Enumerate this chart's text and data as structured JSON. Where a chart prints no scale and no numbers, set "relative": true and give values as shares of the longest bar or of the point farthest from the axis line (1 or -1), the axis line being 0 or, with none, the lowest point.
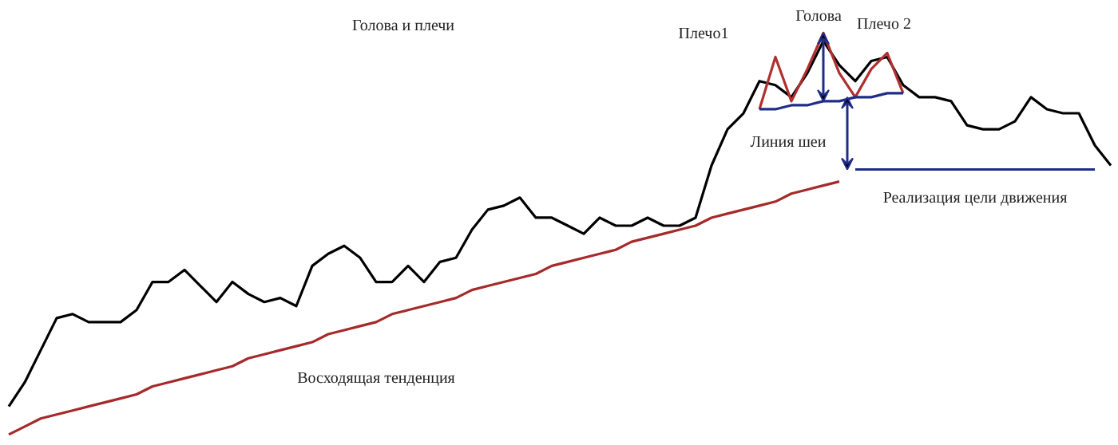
{
  "chart_data": {
    "type": "line",
    "relative": true,
    "title": "Голова и плечи",
    "annotations": [
      "Плечо1",
      "Голова",
      "Плечо 2",
      "Линия шеи",
      "Реализация цели движения",
      "Восходящая тенденция"
    ],
    "categories": [
      null,
      null,
      null,
      null,
      null,
      null,
      null,
      null,
      null,
      null,
      null,
      null,
      null,
      null,
      null,
      null,
      null,
      null,
      null,
      null,
      null,
      null,
      null,
      null,
      null,
      null,
      null,
      null,
      null,
      null,
      null,
      null,
      null,
      null,
      null,
      null,
      null,
      null,
      null,
      null,
      null,
      null,
      null,
      null,
      null,
      null,
      null,
      null,
      null,
      null,
      null,
      null,
      null,
      null,
      null,
      null,
      null,
      null,
      null,
      null,
      null,
      null,
      null,
      null,
      null,
      null,
      null,
      null,
      null,
      null
    ],
    "grid": false,
    "line_style": "solid",
    "series": [
      {
        "color": "#000000",
        "values": [
          0.07,
          0.13,
          0.21,
          0.29,
          0.3,
          0.28,
          0.28,
          0.28,
          0.31,
          0.38,
          0.38,
          0.41,
          0.37,
          0.33,
          0.38,
          0.35,
          0.33,
          0.34,
          0.32,
          0.42,
          0.45,
          0.47,
          0.44,
          0.38,
          0.38,
          0.42,
          0.38,
          0.43,
          0.44,
          0.51,
          0.56,
          0.57,
          0.59,
          0.54,
          0.54,
          0.52,
          0.5,
          0.54,
          0.52,
          0.52,
          0.54,
          0.52,
          0.52,
          0.54,
          0.67,
          0.76,
          0.8,
          0.88,
          0.87,
          0.84,
          0.9,
          0.98,
          0.92,
          0.88,
          0.93,
          0.94,
          0.87,
          0.84,
          0.84,
          0.83,
          0.77,
          0.76,
          0.76,
          0.78,
          0.84,
          0.81,
          0.8,
          0.8,
          0.72,
          0.67
        ]
      },
      {
        "color": "#a52a2a",
        "values": [
          0.0,
          0.02,
          0.04,
          0.05,
          0.06,
          0.07,
          0.08,
          0.09,
          0.1,
          0.12,
          0.13,
          0.14,
          0.15,
          0.16,
          0.17,
          0.19,
          0.2,
          0.21,
          0.22,
          0.23,
          0.25,
          0.26,
          0.27,
          0.28,
          0.3,
          0.31,
          0.32,
          0.33,
          0.34,
          0.36,
          0.37,
          0.38,
          0.39,
          0.4,
          0.42,
          0.43,
          0.44,
          0.45,
          0.46,
          0.48,
          0.49,
          0.5,
          0.51,
          0.52,
          0.54,
          0.55,
          0.56,
          0.57,
          0.58,
          0.6,
          0.61,
          0.62,
          0.63,
          null,
          null,
          null,
          null,
          null,
          null,
          null,
          null,
          null,
          null,
          null,
          null,
          null,
          null,
          null,
          null,
          null
        ]
      },
      {
        "color": "#b03030",
        "values": [
          null,
          null,
          null,
          null,
          null,
          null,
          null,
          null,
          null,
          null,
          null,
          null,
          null,
          null,
          null,
          null,
          null,
          null,
          null,
          null,
          null,
          null,
          null,
          null,
          null,
          null,
          null,
          null,
          null,
          null,
          null,
          null,
          null,
          null,
          null,
          null,
          null,
          null,
          null,
          null,
          null,
          null,
          null,
          null,
          null,
          null,
          null,
          0.81,
          0.94,
          0.83,
          0.91,
          1.0,
          0.9,
          0.84,
          0.91,
          0.95,
          0.85,
          null,
          null,
          null,
          null,
          null,
          null,
          null,
          null,
          null,
          null,
          null,
          null,
          null
        ]
      },
      {
        "color": "#1f2d8a",
        "values": [
          null,
          null,
          null,
          null,
          null,
          null,
          null,
          null,
          null,
          null,
          null,
          null,
          null,
          null,
          null,
          null,
          null,
          null,
          null,
          null,
          null,
          null,
          null,
          null,
          null,
          null,
          null,
          null,
          null,
          null,
          null,
          null,
          null,
          null,
          null,
          null,
          null,
          null,
          null,
          null,
          null,
          null,
          null,
          null,
          null,
          null,
          null,
          0.81,
          0.81,
          0.82,
          0.82,
          0.83,
          0.83,
          0.84,
          0.84,
          0.85,
          0.85,
          null,
          null,
          null,
          null,
          null,
          null,
          null,
          null,
          null,
          null,
          null,
          null,
          null
        ]
      },
      {
        "color": "#1f2d8a",
        "values": [
          null,
          null,
          null,
          null,
          null,
          null,
          null,
          null,
          null,
          null,
          null,
          null,
          null,
          null,
          null,
          null,
          null,
          null,
          null,
          null,
          null,
          null,
          null,
          null,
          null,
          null,
          null,
          null,
          null,
          null,
          null,
          null,
          null,
          null,
          null,
          null,
          null,
          null,
          null,
          null,
          null,
          null,
          null,
          null,
          null,
          null,
          null,
          null,
          null,
          null,
          null,
          null,
          null,
          0.66,
          0.66,
          0.66,
          0.66,
          0.66,
          0.66,
          0.66,
          0.66,
          0.66,
          0.66,
          0.66,
          0.66,
          0.66,
          0.66,
          0.66,
          0.66,
          null
        ]
      }
    ]
  }
}
